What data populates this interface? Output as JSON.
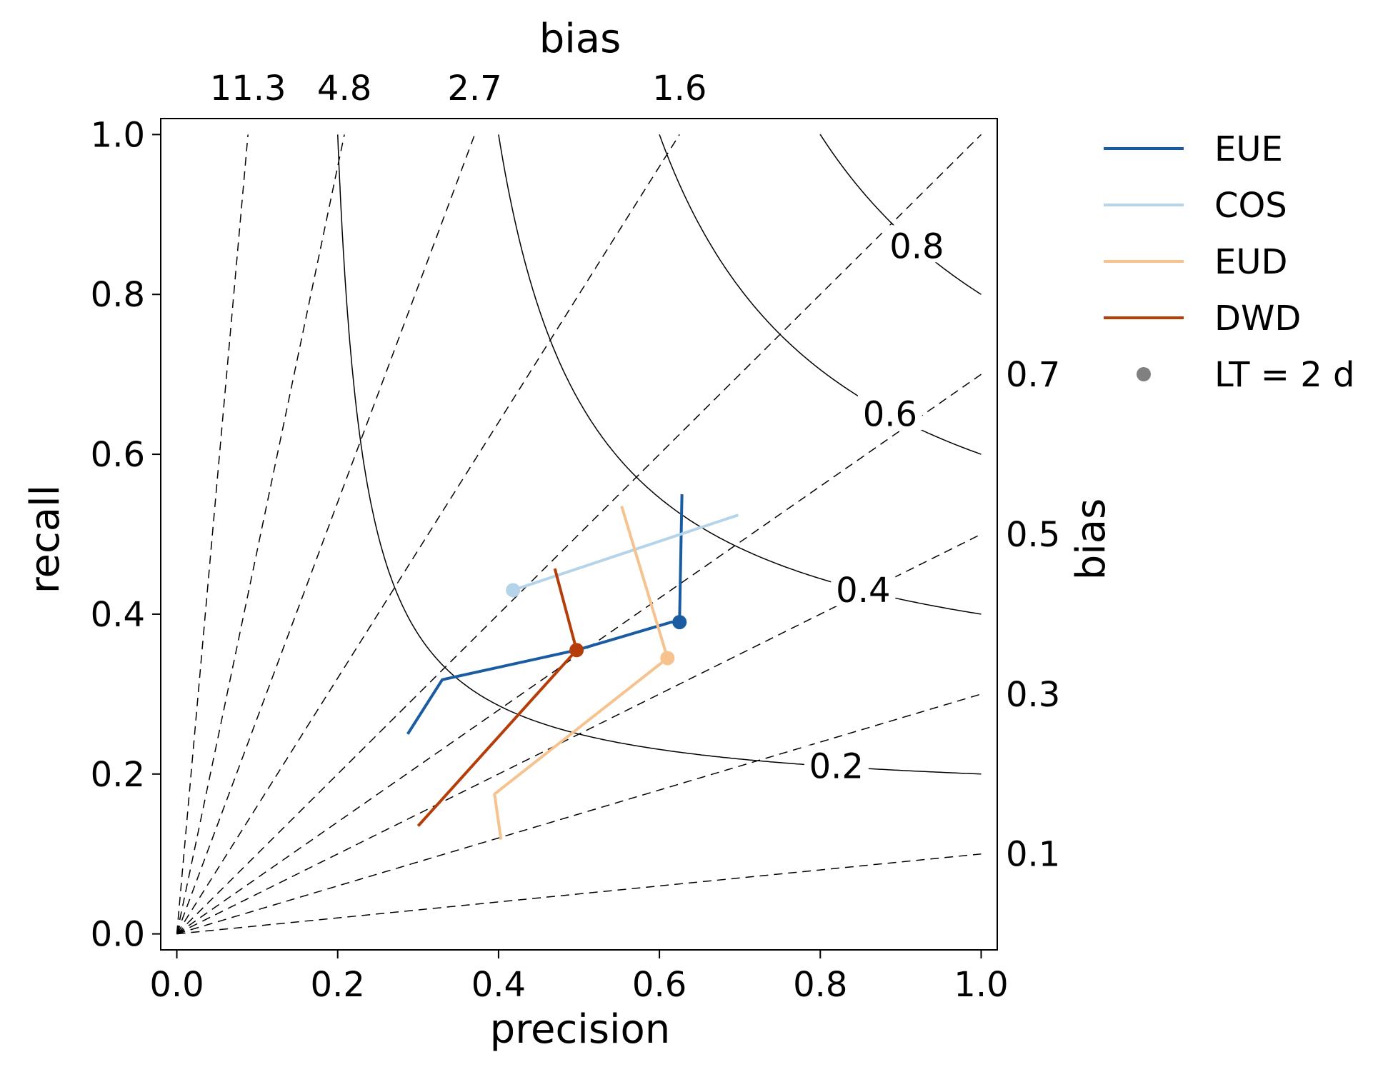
{
  "chart_data": {
    "type": "line",
    "title": "",
    "xlabel": "precision",
    "ylabel": "recall",
    "top_axis_label": "bias",
    "right_axis_label": "bias",
    "xlim": [
      -0.02,
      1.02
    ],
    "ylim": [
      -0.02,
      1.02
    ],
    "x_ticks": [
      0.0,
      0.2,
      0.4,
      0.6,
      0.8,
      1.0
    ],
    "y_ticks": [
      0.0,
      0.2,
      0.4,
      0.6,
      0.8,
      1.0
    ],
    "x_tick_labels": [
      "0.0",
      "0.2",
      "0.4",
      "0.6",
      "0.8",
      "1.0"
    ],
    "y_tick_labels": [
      "0.0",
      "0.2",
      "0.4",
      "0.6",
      "0.8",
      "1.0"
    ],
    "bias_lines": [
      11.3,
      4.8,
      2.7,
      1.6,
      1.0,
      0.7,
      0.5,
      0.3,
      0.1
    ],
    "bias_top_labels": [
      {
        "value": 11.3,
        "text": "11.3"
      },
      {
        "value": 4.8,
        "text": "4.8"
      },
      {
        "value": 2.7,
        "text": "2.7"
      },
      {
        "value": 1.6,
        "text": "1.6"
      }
    ],
    "bias_right_labels": [
      {
        "value": 0.7,
        "text": "0.7"
      },
      {
        "value": 0.5,
        "text": "0.5"
      },
      {
        "value": 0.3,
        "text": "0.3"
      },
      {
        "value": 0.1,
        "text": "0.1"
      }
    ],
    "csi_contours": [
      {
        "value": 0.2,
        "text": "0.2"
      },
      {
        "value": 0.4,
        "text": "0.4"
      },
      {
        "value": 0.6,
        "text": "0.6"
      },
      {
        "value": 0.8,
        "text": "0.8"
      }
    ],
    "series": [
      {
        "name": "EUE",
        "color": "#1a5ca1",
        "x": [
          0.625,
          0.615,
          0.497,
          0.33,
          0.287
        ],
        "y": [
          0.39,
          0.39,
          0.355,
          0.318,
          0.25
        ],
        "x_ext": [
          0.628
        ],
        "y_ext": [
          0.55
        ]
      },
      {
        "name": "COS",
        "color": "#b6d4e9",
        "x": [
          0.418,
          0.698
        ],
        "y": [
          0.43,
          0.524
        ]
      },
      {
        "name": "EUD",
        "color": "#f6c28e",
        "x": [
          0.61,
          0.553,
          0.4,
          0.395,
          0.403
        ],
        "y": [
          0.345,
          0.535,
          0.34,
          0.175,
          0.118
        ],
        "path_x": [
          0.553,
          0.61,
          0.395,
          0.403
        ],
        "path_y": [
          0.535,
          0.345,
          0.175,
          0.118
        ]
      },
      {
        "name": "DWD",
        "color": "#b53d0a",
        "path_x": [
          0.47,
          0.497,
          0.3
        ],
        "path_y": [
          0.457,
          0.355,
          0.135
        ]
      }
    ],
    "markers": [
      {
        "series": "EUE",
        "x": 0.625,
        "y": 0.39
      },
      {
        "series": "COS",
        "x": 0.418,
        "y": 0.43
      },
      {
        "series": "EUD",
        "x": 0.61,
        "y": 0.345
      },
      {
        "series": "DWD",
        "x": 0.497,
        "y": 0.355
      }
    ],
    "legend": {
      "position": "outside-right",
      "entries": [
        {
          "label": "EUE",
          "color": "#1a5ca1",
          "kind": "line"
        },
        {
          "label": "COS",
          "color": "#b6d4e9",
          "kind": "line"
        },
        {
          "label": "EUD",
          "color": "#f6c28e",
          "kind": "line"
        },
        {
          "label": "DWD",
          "color": "#b53d0a",
          "kind": "line"
        },
        {
          "label": "LT = 2 d",
          "color": "#808080",
          "kind": "marker"
        }
      ]
    },
    "grid": false
  }
}
